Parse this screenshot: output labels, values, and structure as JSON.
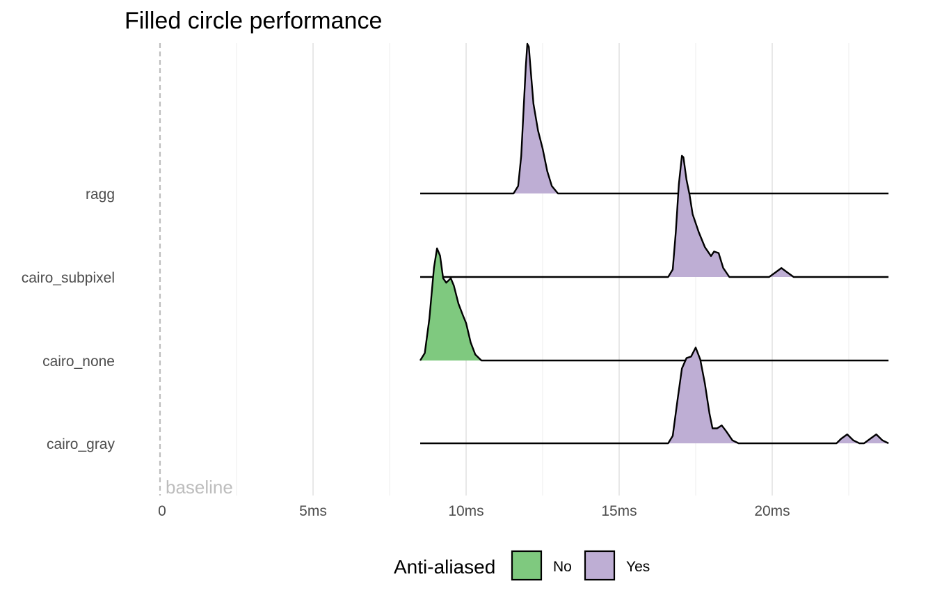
{
  "chart_data": {
    "type": "area",
    "subtype": "ridgeline",
    "title": "Filled circle performance",
    "xlabel": "",
    "ylabel": "",
    "x_unit": "ms",
    "xlim": [
      0,
      23.7
    ],
    "x_ticks": [
      {
        "value": 0,
        "label": "0"
      },
      {
        "value": 5,
        "label": "5ms"
      },
      {
        "value": 10,
        "label": "10ms"
      },
      {
        "value": 15,
        "label": "15ms"
      },
      {
        "value": 20,
        "label": "20ms"
      }
    ],
    "minor_gridlines": [
      2.5,
      7.5,
      12.5,
      17.5,
      22.5
    ],
    "grid": true,
    "reference_line": {
      "x": 0,
      "style": "dashed",
      "color": "#bdbdbd",
      "label": "baseline"
    },
    "legend": {
      "title": "Anti-aliased",
      "position": "bottom",
      "entries": [
        {
          "label": "No",
          "color": "#7fc97f"
        },
        {
          "label": "Yes",
          "color": "#beaed4"
        }
      ]
    },
    "density_range_x": [
      8.5,
      23.8
    ],
    "series": [
      {
        "name": "ragg",
        "anti_aliased": "Yes",
        "points": [
          [
            11.55,
            0.0
          ],
          [
            11.7,
            0.05
          ],
          [
            11.8,
            0.25
          ],
          [
            11.9,
            0.65
          ],
          [
            11.95,
            0.85
          ],
          [
            12.0,
            1.0
          ],
          [
            12.05,
            0.98
          ],
          [
            12.1,
            0.85
          ],
          [
            12.2,
            0.6
          ],
          [
            12.35,
            0.42
          ],
          [
            12.5,
            0.3
          ],
          [
            12.65,
            0.15
          ],
          [
            12.8,
            0.05
          ],
          [
            13.0,
            0.0
          ]
        ]
      },
      {
        "name": "cairo_subpixel",
        "anti_aliased": "Yes",
        "points": [
          [
            16.6,
            0.0
          ],
          [
            16.75,
            0.05
          ],
          [
            16.85,
            0.3
          ],
          [
            16.95,
            0.62
          ],
          [
            17.05,
            0.81
          ],
          [
            17.1,
            0.8
          ],
          [
            17.2,
            0.65
          ],
          [
            17.3,
            0.55
          ],
          [
            17.4,
            0.42
          ],
          [
            17.6,
            0.3
          ],
          [
            17.8,
            0.2
          ],
          [
            18.0,
            0.14
          ],
          [
            18.1,
            0.17
          ],
          [
            18.25,
            0.16
          ],
          [
            18.4,
            0.06
          ],
          [
            18.6,
            0.0
          ],
          [
            19.9,
            0.0
          ],
          [
            20.1,
            0.03
          ],
          [
            20.3,
            0.06
          ],
          [
            20.5,
            0.03
          ],
          [
            20.7,
            0.0
          ]
        ]
      },
      {
        "name": "cairo_none",
        "anti_aliased": "No",
        "points": [
          [
            8.5,
            0.0
          ],
          [
            8.65,
            0.05
          ],
          [
            8.8,
            0.28
          ],
          [
            8.95,
            0.62
          ],
          [
            9.05,
            0.75
          ],
          [
            9.15,
            0.7
          ],
          [
            9.25,
            0.55
          ],
          [
            9.35,
            0.52
          ],
          [
            9.5,
            0.55
          ],
          [
            9.6,
            0.5
          ],
          [
            9.75,
            0.38
          ],
          [
            9.9,
            0.3
          ],
          [
            10.0,
            0.25
          ],
          [
            10.15,
            0.12
          ],
          [
            10.3,
            0.04
          ],
          [
            10.5,
            0.0
          ]
        ]
      },
      {
        "name": "cairo_gray",
        "anti_aliased": "Yes",
        "points": [
          [
            16.6,
            0.0
          ],
          [
            16.75,
            0.05
          ],
          [
            16.9,
            0.28
          ],
          [
            17.05,
            0.5
          ],
          [
            17.2,
            0.57
          ],
          [
            17.35,
            0.58
          ],
          [
            17.5,
            0.64
          ],
          [
            17.65,
            0.56
          ],
          [
            17.8,
            0.4
          ],
          [
            17.95,
            0.2
          ],
          [
            18.05,
            0.1
          ],
          [
            18.2,
            0.1
          ],
          [
            18.35,
            0.12
          ],
          [
            18.5,
            0.08
          ],
          [
            18.7,
            0.02
          ],
          [
            18.9,
            0.0
          ],
          [
            22.1,
            0.0
          ],
          [
            22.25,
            0.03
          ],
          [
            22.45,
            0.06
          ],
          [
            22.65,
            0.02
          ],
          [
            22.85,
            0.0
          ],
          [
            23.0,
            0.0
          ],
          [
            23.2,
            0.03
          ],
          [
            23.4,
            0.06
          ],
          [
            23.6,
            0.02
          ],
          [
            23.8,
            0.0
          ]
        ]
      }
    ]
  }
}
